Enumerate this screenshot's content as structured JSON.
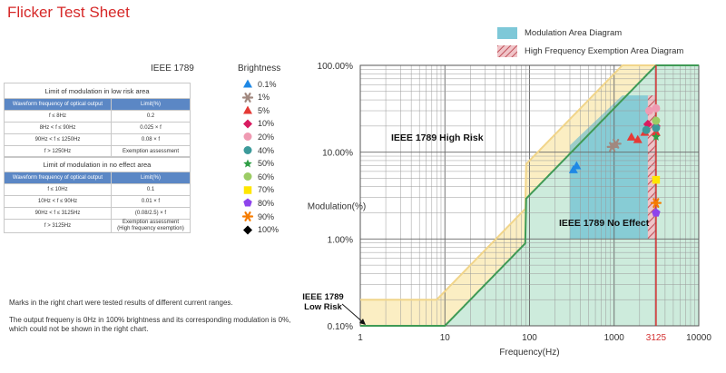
{
  "page_title": "Flicker Test Sheet",
  "standard": "IEEE 1789",
  "low_risk_table": {
    "caption": "Limit of modulation in low risk area",
    "headers": [
      "Waveform frequency of optical output",
      "Limit(%)"
    ],
    "rows": [
      [
        "f ≤ 8Hz",
        "0.2"
      ],
      [
        "8Hz < f ≤ 90Hz",
        "0.025 × f"
      ],
      [
        "90Hz < f ≤ 1250Hz",
        "0.08 × f"
      ],
      [
        "f > 1250Hz",
        "Exemption assessment"
      ]
    ]
  },
  "no_effect_table": {
    "caption": "Limit of modulation in no effect area",
    "headers": [
      "Waveform frequency of optical output",
      "Limit(%)"
    ],
    "rows": [
      [
        "f ≤ 10Hz",
        "0.1"
      ],
      [
        "10Hz < f ≤ 90Hz",
        "0.01 × f"
      ],
      [
        "90Hz < f ≤ 3125Hz",
        "(0.08/2.5) × f"
      ],
      [
        "f > 3125Hz",
        "Exemption assessment\n(High frequency exemption)"
      ]
    ]
  },
  "brightness_legend": {
    "title": "Brightness",
    "items": [
      {
        "label": "0.1%",
        "shape": "triangle",
        "color": "#1e88e5"
      },
      {
        "label": "1%",
        "shape": "asterisk",
        "color": "#a1887f"
      },
      {
        "label": "5%",
        "shape": "triangle",
        "color": "#e53935"
      },
      {
        "label": "10%",
        "shape": "diamond",
        "color": "#d81b60"
      },
      {
        "label": "20%",
        "shape": "circle",
        "color": "#ef9ab2"
      },
      {
        "label": "40%",
        "shape": "circle",
        "color": "#3c9a9a"
      },
      {
        "label": "50%",
        "shape": "star",
        "color": "#2e9e44"
      },
      {
        "label": "60%",
        "shape": "circle",
        "color": "#9ccc65"
      },
      {
        "label": "70%",
        "shape": "square",
        "color": "#ffe600"
      },
      {
        "label": "80%",
        "shape": "pentagon",
        "color": "#8e44ec"
      },
      {
        "label": "90%",
        "shape": "asterisk",
        "color": "#f57c00"
      },
      {
        "label": "100%",
        "shape": "diamond",
        "color": "#000000"
      }
    ]
  },
  "notes": [
    "Marks in the right chart were tested results of different current ranges.",
    "The output frequeny is 0Hz in 100% brightness and its corresponding modulation is 0%, which could not be shown in the right chart."
  ],
  "area_legend": [
    {
      "label": "Modulation Area Diagram",
      "color": "#7ec8d8"
    },
    {
      "label": "High Frequency Exemption Area Diagram",
      "color": "#e6a0a8"
    }
  ],
  "chart_data": {
    "type": "scatter",
    "x_scale": "log",
    "y_scale": "log",
    "xlim": [
      1,
      10000
    ],
    "ylim": [
      0.1,
      100
    ],
    "xlabel": "Frequency(Hz)",
    "ylabel": "Modulation(%)",
    "x_ticks": [
      "1",
      "10",
      "100",
      "1000",
      "3125",
      "10000"
    ],
    "y_ticks": [
      "0.10%",
      "1.00%",
      "10.00%",
      "100.00%"
    ],
    "grid": true,
    "region_labels": [
      "IEEE 1789 High Risk",
      "IEEE 1789 No Effect",
      "IEEE 1789\nLow Risk"
    ],
    "reference_line_x": 3125,
    "reference_line_color": "#d32f2f",
    "modulation_area": {
      "x": [
        300,
        3125
      ],
      "y_min": 1,
      "y_max": 45
    },
    "exemption_area": {
      "x": [
        2500,
        3125
      ],
      "y_min": 1,
      "y_max": 45
    },
    "series": [
      {
        "name": "0.1%",
        "points": [
          [
            330,
            6.3
          ],
          [
            360,
            7.0
          ]
        ]
      },
      {
        "name": "1%",
        "points": [
          [
            950,
            11.5
          ],
          [
            1050,
            12.5
          ]
        ]
      },
      {
        "name": "5%",
        "points": [
          [
            1600,
            15
          ],
          [
            1900,
            14
          ],
          [
            2300,
            17
          ],
          [
            3125,
            17
          ]
        ]
      },
      {
        "name": "10%",
        "points": [
          [
            2500,
            21
          ],
          [
            3125,
            20
          ]
        ]
      },
      {
        "name": "20%",
        "points": [
          [
            2600,
            30
          ],
          [
            3125,
            32
          ]
        ]
      },
      {
        "name": "40%",
        "points": [
          [
            2400,
            18
          ],
          [
            3125,
            19
          ]
        ]
      },
      {
        "name": "50%",
        "points": [
          [
            3125,
            15
          ]
        ]
      },
      {
        "name": "60%",
        "points": [
          [
            3125,
            23
          ]
        ]
      },
      {
        "name": "70%",
        "points": [
          [
            3125,
            4.8
          ]
        ]
      },
      {
        "name": "80%",
        "points": [
          [
            3125,
            2.0
          ]
        ]
      },
      {
        "name": "90%",
        "points": [
          [
            3125,
            2.6
          ]
        ]
      },
      {
        "name": "100%",
        "points": []
      }
    ]
  }
}
